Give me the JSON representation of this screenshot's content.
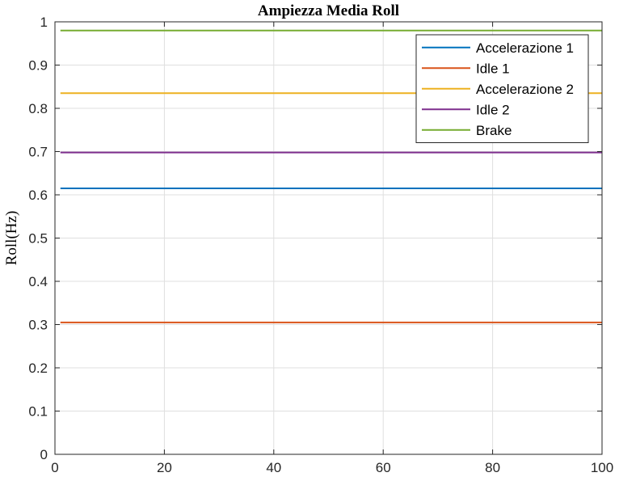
{
  "chart_data": {
    "type": "line",
    "title": "Ampiezza Media Roll",
    "xlabel": "",
    "ylabel": "Roll(Hz)",
    "xlim": [
      0,
      100
    ],
    "ylim": [
      0,
      1
    ],
    "xticks": [
      0,
      20,
      40,
      60,
      80,
      100
    ],
    "yticks": [
      0,
      0.1,
      0.2,
      0.3,
      0.4,
      0.5,
      0.6,
      0.7,
      0.8,
      0.9,
      1
    ],
    "grid": true,
    "legend_position": "top-right",
    "x": [
      1,
      100
    ],
    "series": [
      {
        "name": "Accelerazione 1",
        "color": "#0072BD",
        "values": [
          0.615,
          0.615
        ]
      },
      {
        "name": "Idle 1",
        "color": "#D95319",
        "values": [
          0.305,
          0.305
        ]
      },
      {
        "name": "Accelerazione 2",
        "color": "#EDB120",
        "values": [
          0.835,
          0.835
        ]
      },
      {
        "name": "Idle 2",
        "color": "#7E2F8E",
        "values": [
          0.698,
          0.698
        ]
      },
      {
        "name": "Brake",
        "color": "#77AC30",
        "values": [
          0.98,
          0.98
        ]
      }
    ]
  }
}
